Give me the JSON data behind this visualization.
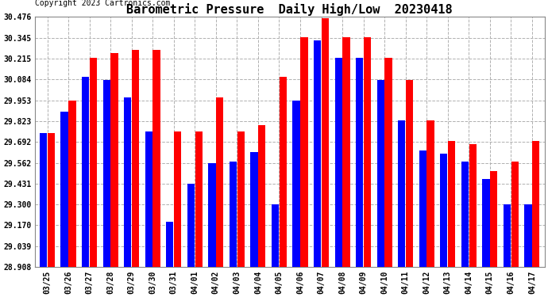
{
  "title": "Barometric Pressure  Daily High/Low  20230418",
  "copyright": "Copyright 2023 Cartronics.com",
  "categories": [
    "03/25",
    "03/26",
    "03/27",
    "03/28",
    "03/29",
    "03/30",
    "03/31",
    "04/01",
    "04/02",
    "04/03",
    "04/04",
    "04/05",
    "04/06",
    "04/07",
    "04/08",
    "04/09",
    "04/10",
    "04/11",
    "04/12",
    "04/13",
    "04/14",
    "04/15",
    "04/16",
    "04/17"
  ],
  "low_values": [
    29.75,
    29.88,
    30.1,
    30.08,
    29.97,
    29.76,
    29.19,
    29.43,
    29.56,
    29.57,
    29.63,
    29.3,
    29.95,
    30.33,
    30.22,
    30.22,
    30.08,
    29.83,
    29.64,
    29.62,
    29.57,
    29.46,
    29.3,
    29.3
  ],
  "high_values": [
    29.75,
    29.95,
    30.22,
    30.25,
    30.27,
    30.27,
    29.76,
    29.76,
    29.97,
    29.76,
    29.8,
    30.1,
    30.35,
    30.47,
    30.35,
    30.35,
    30.22,
    30.08,
    29.83,
    29.7,
    29.68,
    29.51,
    29.57,
    29.7
  ],
  "low_color": "#0000ff",
  "high_color": "#ff0000",
  "bg_color": "#ffffff",
  "grid_color": "#b0b0b0",
  "ymin": 28.908,
  "ymax": 30.476,
  "yticks": [
    28.908,
    29.039,
    29.17,
    29.3,
    29.431,
    29.562,
    29.692,
    29.823,
    29.953,
    30.084,
    30.215,
    30.345,
    30.476
  ],
  "title_fontsize": 11,
  "copyright_fontsize": 7,
  "legend_fontsize": 8,
  "tick_fontsize": 7,
  "bar_width": 0.35,
  "bar_gap": 0.02,
  "figwidth": 6.9,
  "figheight": 3.75,
  "dpi": 100
}
